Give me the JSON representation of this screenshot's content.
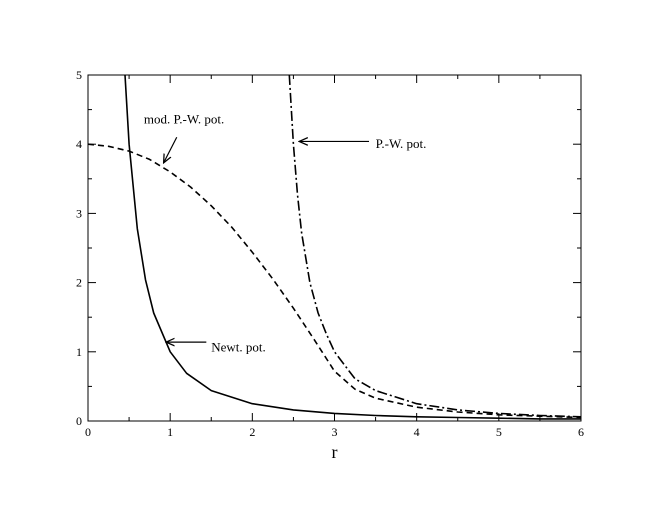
{
  "chart_data": {
    "type": "line",
    "xlabel": "r",
    "ylabel": "",
    "xlim": [
      0,
      6
    ],
    "ylim": [
      0,
      5
    ],
    "x_ticks": [
      "0",
      "1",
      "2",
      "3",
      "4",
      "5",
      "6"
    ],
    "y_ticks": [
      "0",
      "1",
      "2",
      "3",
      "4",
      "5"
    ],
    "grid": false,
    "series": [
      {
        "style": "solid",
        "x": [
          0.45,
          0.5,
          0.6,
          0.7,
          0.8,
          1.0,
          1.2,
          1.5,
          2.0,
          2.5,
          3.0,
          3.5,
          4.0,
          4.5,
          5.0,
          5.5,
          6.0
        ],
        "y": [
          5.0,
          4.0,
          2.78,
          2.04,
          1.56,
          1.0,
          0.69,
          0.44,
          0.25,
          0.16,
          0.11,
          0.08,
          0.06,
          0.05,
          0.04,
          0.03,
          0.03
        ]
      },
      {
        "style": "dashed",
        "x": [
          0.0,
          0.25,
          0.5,
          0.75,
          1.0,
          1.25,
          1.5,
          1.75,
          2.0,
          2.25,
          2.5,
          2.75,
          3.0,
          3.25,
          3.5,
          4.0,
          4.5,
          5.0,
          5.5,
          6.0
        ],
        "y": [
          4.0,
          3.97,
          3.9,
          3.78,
          3.6,
          3.38,
          3.11,
          2.8,
          2.44,
          2.05,
          1.63,
          1.18,
          0.72,
          0.46,
          0.33,
          0.2,
          0.13,
          0.09,
          0.07,
          0.05
        ]
      },
      {
        "style": "dashdot",
        "x": [
          2.45,
          2.5,
          2.55,
          2.6,
          2.7,
          2.8,
          2.9,
          3.0,
          3.25,
          3.5,
          4.0,
          4.5,
          5.0,
          5.5,
          6.0
        ],
        "y": [
          5.0,
          4.0,
          3.27,
          2.72,
          2.0,
          1.56,
          1.26,
          1.0,
          0.61,
          0.44,
          0.25,
          0.16,
          0.11,
          0.08,
          0.06
        ]
      }
    ],
    "annotations": [
      {
        "text": "mod. P.-W. pot.",
        "text_at": [
          0.68,
          4.36
        ],
        "arrow_from": [
          1.08,
          4.1
        ],
        "arrow_to": [
          0.92,
          3.73
        ]
      },
      {
        "text": "P.-W. pot.",
        "text_at": [
          3.5,
          4.0
        ],
        "arrow_from": [
          3.42,
          4.04
        ],
        "arrow_to": [
          2.57,
          4.04
        ]
      },
      {
        "text": "Newt. pot.",
        "text_at": [
          1.5,
          1.06
        ],
        "arrow_from": [
          1.44,
          1.14
        ],
        "arrow_to": [
          0.95,
          1.14
        ]
      }
    ]
  }
}
